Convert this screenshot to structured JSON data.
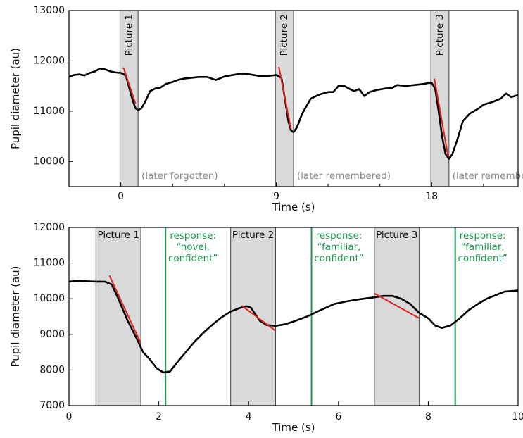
{
  "colors": {
    "trace": "#000000",
    "slope": "#e0201b",
    "band_fill": "#d9d9d9",
    "band_stroke": "#444444",
    "response_line": "#1a9a4f",
    "note_gray": "#888888"
  },
  "chart_data": [
    {
      "type": "line",
      "xlabel": "Time (s)",
      "ylabel": "Pupil diameter (au)",
      "xlim": [
        -3,
        23
      ],
      "ylim": [
        9500,
        13000
      ],
      "x_ticks": [
        0,
        9,
        18
      ],
      "x_tick_labels": [
        "0",
        "9",
        "18"
      ],
      "x_minor_ticks": [
        -3,
        3,
        6,
        12,
        15,
        21
      ],
      "y_ticks": [
        10000,
        11000,
        12000,
        13000
      ],
      "y_tick_labels": [
        "10000",
        "11000",
        "12000",
        "13000"
      ],
      "bands": [
        {
          "label": "Picture 1",
          "x0": -0.05,
          "x1": 1.0
        },
        {
          "label": "Picture 2",
          "x0": 8.95,
          "x1": 10.0
        },
        {
          "label": "Picture 3",
          "x0": 17.95,
          "x1": 19.0
        }
      ],
      "annotations": [
        {
          "text": "(later forgotten)",
          "x": 1.2
        },
        {
          "text": "(later remembered)",
          "x": 10.2
        },
        {
          "text": "(later remembered)",
          "x": 19.2
        }
      ],
      "series": [
        {
          "points": [
            [
              -3,
              11680
            ],
            [
              -2.7,
              11720
            ],
            [
              -2.4,
              11730
            ],
            [
              -2.1,
              11710
            ],
            [
              -1.8,
              11760
            ],
            [
              -1.5,
              11790
            ],
            [
              -1.2,
              11850
            ],
            [
              -0.9,
              11830
            ],
            [
              -0.6,
              11790
            ],
            [
              -0.3,
              11770
            ],
            [
              0,
              11760
            ],
            [
              0.15,
              11740
            ],
            [
              0.3,
              11700
            ],
            [
              0.5,
              11450
            ],
            [
              0.7,
              11200
            ],
            [
              0.85,
              11060
            ],
            [
              1.0,
              11020
            ],
            [
              1.2,
              11060
            ],
            [
              1.4,
              11180
            ],
            [
              1.7,
              11400
            ],
            [
              2.0,
              11450
            ],
            [
              2.3,
              11470
            ],
            [
              2.6,
              11540
            ],
            [
              3.0,
              11580
            ],
            [
              3.3,
              11620
            ],
            [
              3.7,
              11650
            ],
            [
              4.0,
              11660
            ],
            [
              4.5,
              11680
            ],
            [
              5.0,
              11680
            ],
            [
              5.5,
              11620
            ],
            [
              6.0,
              11690
            ],
            [
              6.5,
              11720
            ],
            [
              7.0,
              11750
            ],
            [
              7.5,
              11730
            ],
            [
              8.0,
              11700
            ],
            [
              8.5,
              11700
            ],
            [
              8.8,
              11710
            ],
            [
              9.0,
              11720
            ],
            [
              9.3,
              11660
            ],
            [
              9.5,
              11250
            ],
            [
              9.7,
              10800
            ],
            [
              9.85,
              10620
            ],
            [
              10.0,
              10580
            ],
            [
              10.2,
              10680
            ],
            [
              10.5,
              10950
            ],
            [
              11.0,
              11250
            ],
            [
              11.5,
              11330
            ],
            [
              12.0,
              11380
            ],
            [
              12.3,
              11380
            ],
            [
              12.6,
              11500
            ],
            [
              12.9,
              11510
            ],
            [
              13.2,
              11450
            ],
            [
              13.5,
              11400
            ],
            [
              13.8,
              11440
            ],
            [
              14.1,
              11300
            ],
            [
              14.4,
              11380
            ],
            [
              14.8,
              11420
            ],
            [
              15.3,
              11450
            ],
            [
              15.7,
              11460
            ],
            [
              16.0,
              11520
            ],
            [
              16.5,
              11500
            ],
            [
              17.0,
              11520
            ],
            [
              17.5,
              11540
            ],
            [
              17.8,
              11560
            ],
            [
              18.0,
              11560
            ],
            [
              18.2,
              11450
            ],
            [
              18.4,
              11000
            ],
            [
              18.6,
              10500
            ],
            [
              18.8,
              10150
            ],
            [
              19.0,
              10050
            ],
            [
              19.2,
              10150
            ],
            [
              19.5,
              10450
            ],
            [
              19.8,
              10800
            ],
            [
              20.2,
              10950
            ],
            [
              20.7,
              11050
            ],
            [
              21.0,
              11130
            ],
            [
              21.5,
              11180
            ],
            [
              22.0,
              11250
            ],
            [
              22.3,
              11350
            ],
            [
              22.6,
              11280
            ],
            [
              23.0,
              11320
            ],
            [
              23.4,
              11300
            ],
            [
              23.8,
              11330
            ],
            [
              24.2,
              11430
            ],
            [
              24.6,
              11490
            ],
            [
              25.0,
              11520
            ]
          ]
        }
      ],
      "slope_segments": [
        [
          [
            0.15,
            11870
          ],
          [
            0.85,
            11150
          ]
        ],
        [
          [
            9.15,
            11880
          ],
          [
            9.85,
            10650
          ]
        ],
        [
          [
            18.15,
            11650
          ],
          [
            18.95,
            10100
          ]
        ]
      ]
    },
    {
      "type": "line",
      "xlabel": "Time (s)",
      "ylabel": "Pupil diameter (au)",
      "xlim": [
        0,
        10
      ],
      "ylim": [
        7000,
        12000
      ],
      "x_ticks": [
        0,
        2,
        4,
        6,
        8,
        10
      ],
      "x_tick_labels": [
        "0",
        "2",
        "4",
        "6",
        "8",
        "10"
      ],
      "y_ticks": [
        7000,
        8000,
        9000,
        10000,
        11000,
        12000
      ],
      "y_tick_labels": [
        "7000",
        "8000",
        "9000",
        "10000",
        "11000",
        "12000"
      ],
      "bands": [
        {
          "label": "Picture 1",
          "x0": 0.6,
          "x1": 1.6
        },
        {
          "label": "Picture 2",
          "x0": 3.6,
          "x1": 4.6
        },
        {
          "label": "Picture 3",
          "x0": 6.8,
          "x1": 7.8
        }
      ],
      "response_lines": [
        {
          "x": 2.15,
          "lines": [
            "response:",
            "“novel,",
            "confident”"
          ]
        },
        {
          "x": 5.4,
          "lines": [
            "response:",
            "“familiar,",
            "confident”"
          ]
        },
        {
          "x": 8.6,
          "lines": [
            "response:",
            "“familiar,",
            "confident”"
          ]
        }
      ],
      "series": [
        {
          "points": [
            [
              0,
              10480
            ],
            [
              0.2,
              10500
            ],
            [
              0.4,
              10490
            ],
            [
              0.6,
              10480
            ],
            [
              0.8,
              10480
            ],
            [
              0.95,
              10400
            ],
            [
              1.1,
              10000
            ],
            [
              1.3,
              9400
            ],
            [
              1.5,
              8900
            ],
            [
              1.65,
              8500
            ],
            [
              1.8,
              8300
            ],
            [
              1.95,
              8050
            ],
            [
              2.1,
              7930
            ],
            [
              2.25,
              7960
            ],
            [
              2.4,
              8200
            ],
            [
              2.6,
              8500
            ],
            [
              2.8,
              8800
            ],
            [
              3.0,
              9050
            ],
            [
              3.2,
              9280
            ],
            [
              3.4,
              9480
            ],
            [
              3.6,
              9640
            ],
            [
              3.8,
              9740
            ],
            [
              3.95,
              9790
            ],
            [
              4.05,
              9750
            ],
            [
              4.15,
              9560
            ],
            [
              4.25,
              9380
            ],
            [
              4.4,
              9260
            ],
            [
              4.6,
              9240
            ],
            [
              4.8,
              9280
            ],
            [
              5.0,
              9360
            ],
            [
              5.3,
              9500
            ],
            [
              5.6,
              9680
            ],
            [
              5.9,
              9850
            ],
            [
              6.2,
              9930
            ],
            [
              6.5,
              9990
            ],
            [
              6.8,
              10040
            ],
            [
              7.0,
              10080
            ],
            [
              7.2,
              10080
            ],
            [
              7.4,
              10000
            ],
            [
              7.6,
              9850
            ],
            [
              7.8,
              9600
            ],
            [
              8.0,
              9450
            ],
            [
              8.15,
              9250
            ],
            [
              8.3,
              9180
            ],
            [
              8.5,
              9250
            ],
            [
              8.7,
              9450
            ],
            [
              8.9,
              9680
            ],
            [
              9.1,
              9850
            ],
            [
              9.3,
              10000
            ],
            [
              9.5,
              10100
            ],
            [
              9.7,
              10200
            ],
            [
              10.0,
              10230
            ]
          ]
        }
      ],
      "slope_segments": [
        [
          [
            0.9,
            10650
          ],
          [
            1.6,
            8750
          ]
        ],
        [
          [
            3.85,
            9800
          ],
          [
            4.6,
            9100
          ]
        ],
        [
          [
            6.8,
            10150
          ],
          [
            7.8,
            9450
          ]
        ]
      ]
    }
  ]
}
